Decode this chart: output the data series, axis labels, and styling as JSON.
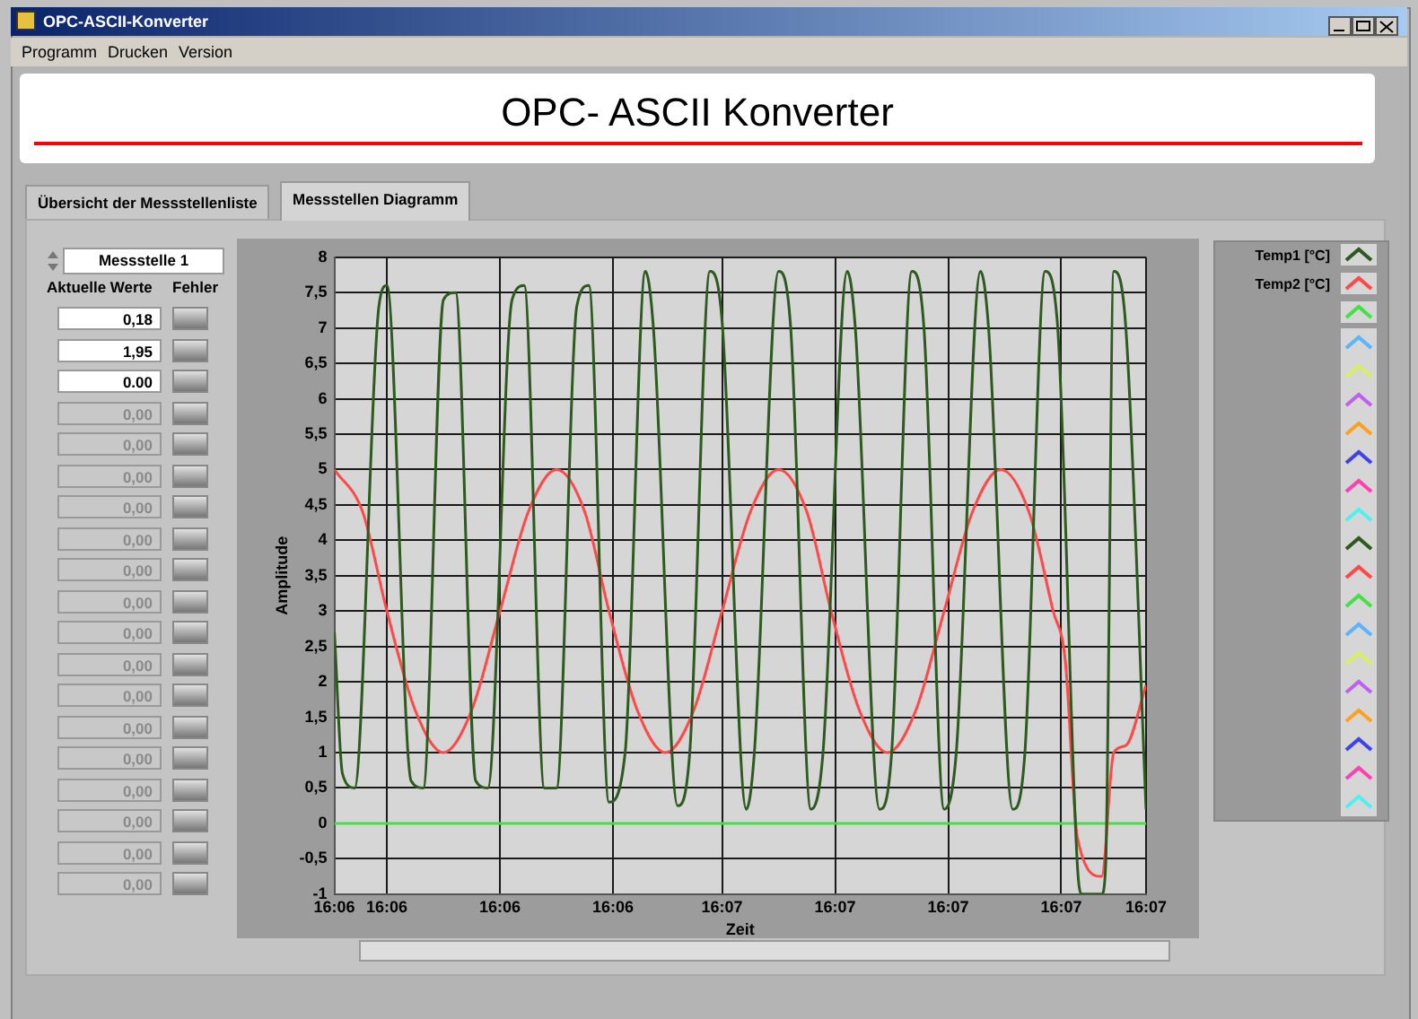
{
  "chart_data": {
    "type": "line",
    "title": "OPC- ASCII Konverter",
    "xlabel": "Zeit",
    "ylabel": "Amplitude",
    "annotations": [
      "OPC-ASCII-Konverter",
      "Programm",
      "Drucken",
      "Version",
      "Übersicht der Messstellenliste",
      "Messstellen Diagramm",
      "Messstelle 1",
      "Aktuelle Werte",
      "Fehler",
      "0,18",
      "1,95",
      "0.00",
      "0,00",
      "0,00",
      "0,00",
      "0,00",
      "0,00",
      "0,00",
      "0,00",
      "0,00",
      "0,00",
      "0,00",
      "0,00",
      "0,00",
      "0,00",
      "0,00",
      "0,00",
      "0,00"
    ],
    "series": [
      {
        "name": "Temp1 [°C]",
        "color": "#2d5a1e",
        "x": [
          16.1001,
          16.1003,
          16.1006,
          16.1012,
          16.1014,
          16.102,
          16.1023,
          16.1028,
          16.1031,
          16.1036,
          16.1039,
          16.1045,
          16.1048,
          16.1053,
          16.1056,
          16.1061,
          16.1064,
          16.1069,
          16.1073,
          16.1078,
          16.108,
          16.1086,
          16.1089,
          16.1094,
          16.1097,
          16.1103,
          16.1105,
          16.1111,
          16.1114,
          16.1119,
          16.1122,
          16.1128,
          16.113,
          16.1136,
          16.1139,
          16.1144,
          16.1147,
          16.1152,
          16.1155,
          16.1161,
          16.1163,
          16.1169,
          16.1172,
          16.1177,
          16.118,
          16.1185,
          16.1186,
          16.1191,
          16.1192,
          16.1194,
          16.1197,
          16.1202
        ],
        "values": [
          2.7,
          0.7,
          0.5,
          7.3,
          7.6,
          0.6,
          0.5,
          7.4,
          7.5,
          0.6,
          0.5,
          7.4,
          7.6,
          0.5,
          0.5,
          7.3,
          7.6,
          0.3,
          1.0,
          7.8,
          7.0,
          0.25,
          1.0,
          7.8,
          7.1,
          0.2,
          1.0,
          7.8,
          7.0,
          0.2,
          1.0,
          7.8,
          7.0,
          0.2,
          1.0,
          7.8,
          7.0,
          0.2,
          1.0,
          7.8,
          7.0,
          0.2,
          1.0,
          7.8,
          7.1,
          -0.6,
          -1.0,
          -1.0,
          -0.6,
          7.8,
          7.0,
          0.2
        ]
      },
      {
        "name": "Temp2 [°C]",
        "color": "#ff4848",
        "x": [
          16.1001,
          16.1008,
          16.1014,
          16.1021,
          16.1028,
          16.1035,
          16.1042,
          16.1049,
          16.1056,
          16.1063,
          16.1069,
          16.1076,
          16.1083,
          16.109,
          16.1097,
          16.1104,
          16.1111,
          16.1118,
          16.1124,
          16.1131,
          16.1138,
          16.1145,
          16.1152,
          16.1159,
          16.1166,
          16.1173,
          16.1179,
          16.1182,
          16.1185,
          16.1191,
          16.1194,
          16.1197,
          16.1202
        ],
        "values": [
          5,
          4.4,
          3,
          1.6,
          1,
          1.6,
          3,
          4.4,
          5,
          4.4,
          3,
          1.6,
          1,
          1.6,
          3,
          4.4,
          5,
          4.4,
          3,
          1.6,
          1,
          1.6,
          3,
          4.4,
          5,
          4.4,
          3.0,
          2.3,
          -0.2,
          -0.75,
          1.0,
          1.1,
          1.95
        ]
      },
      {
        "color": "#44e044",
        "x": [
          16.1001,
          16.1202
        ],
        "values": [
          0,
          0
        ]
      }
    ],
    "xlim": [
      16.1001,
      16.1202
    ],
    "xticks": [
      {
        "value": 16.1001,
        "label": "16:06"
      },
      {
        "value": 16.1014,
        "label": "16:06"
      },
      {
        "value": 16.1042,
        "label": "16:06"
      },
      {
        "value": 16.107,
        "label": "16:06"
      },
      {
        "value": 16.1097,
        "label": "16:07"
      },
      {
        "value": 16.1125,
        "label": "16:07"
      },
      {
        "value": 16.1153,
        "label": "16:07"
      },
      {
        "value": 16.1181,
        "label": "16:07"
      },
      {
        "value": 16.1202,
        "label": "16:07"
      }
    ],
    "ylim": [
      -1,
      8
    ],
    "yticks": [
      -1,
      {
        "value": -0.5,
        "label": "-0,5"
      },
      0,
      {
        "value": 0.5,
        "label": "0,5"
      },
      1,
      {
        "value": 1.5,
        "label": "1,5"
      },
      2,
      {
        "value": 2.5,
        "label": "2,5"
      },
      3,
      {
        "value": 3.5,
        "label": "3,5"
      },
      4,
      {
        "value": 4.5,
        "label": "4,5"
      },
      5,
      {
        "value": 5.5,
        "label": "5,5"
      },
      6,
      {
        "value": 6.5,
        "label": "6,5"
      },
      7,
      {
        "value": 7.5,
        "label": "7,5"
      },
      8
    ],
    "grid": true,
    "legend": "right",
    "marker": "none",
    "line_style": "solid"
  }
}
